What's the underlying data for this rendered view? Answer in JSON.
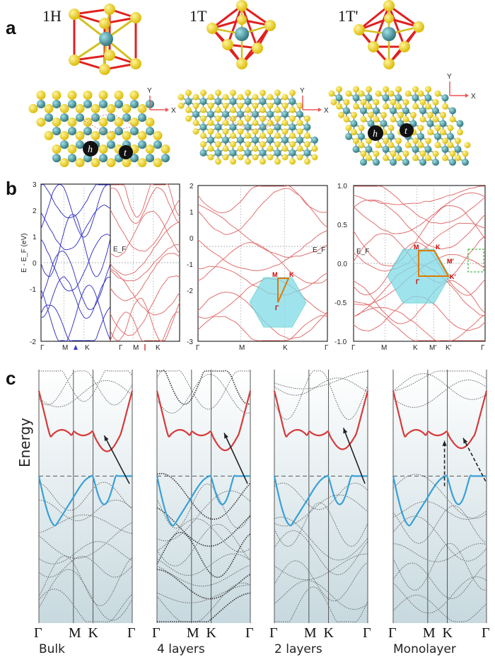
{
  "panel_a": {
    "letter": "a",
    "phases": [
      "1H",
      "1T",
      "1T'"
    ],
    "axis_x": "X",
    "axis_y": "Y",
    "site_labels": {
      "h": "h",
      "t": "t"
    }
  },
  "panel_b": {
    "letter": "b",
    "ylabel_1": "E - E_F (eV)",
    "ef_label": "E_F",
    "ef_small": "E_F",
    "plot1_yticks": [
      "3",
      "2",
      "1",
      "0",
      "-1",
      "-2"
    ],
    "plot1_kpts": [
      "Γ",
      "M",
      "K",
      "Γ"
    ],
    "plot2_kpts": [
      "Γ",
      "M",
      "K"
    ],
    "plot3_yticks": [
      "2",
      "1",
      "0",
      "-1",
      "-2",
      "-3"
    ],
    "plot3_kpts": [
      "Γ",
      "M",
      "K",
      "Γ"
    ],
    "plot3_inset": {
      "M": "M",
      "K": "K",
      "G": "Γ"
    },
    "plot4_yticks": [
      "1.0",
      "0.5",
      "0.0",
      "-0.5",
      "-1.0"
    ],
    "plot4_kpts": [
      "Γ",
      "M",
      "K",
      "M'",
      "K'",
      "Γ"
    ],
    "plot4_inset": {
      "M": "M",
      "K": "K",
      "M2": "M'",
      "K2": "K'",
      "G": "Γ"
    }
  },
  "panel_c": {
    "letter": "c",
    "ylabel": "Energy",
    "kpts": [
      "Γ",
      "M",
      "K",
      "Γ"
    ],
    "captions": [
      "Bulk",
      "4 layers",
      "2 layers",
      "Monolayer"
    ]
  },
  "colors": {
    "red_band": "#d63a3a",
    "blue_band": "#3aa0d6",
    "dark_blue_band": "#3b3bc4",
    "light_red_band": "#e07070",
    "gradient_top": "#ffffff",
    "gradient_bottom": "#c7d9df",
    "mo_atom": "#3a8c95",
    "s_atom": "#f2d81a",
    "prism_edge": "#e02020",
    "inset_fill": "#7fdbe8"
  }
}
